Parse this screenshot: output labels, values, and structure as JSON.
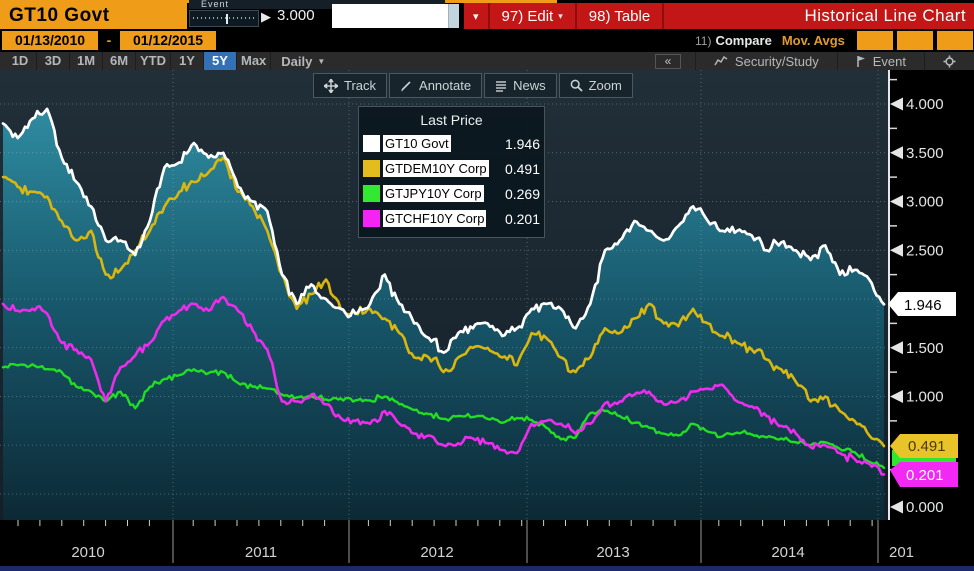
{
  "window": {
    "top_strip_fragment": "Event",
    "security": "GT10 Govt",
    "slider_pointer": "▶",
    "slider_value": "3.000",
    "input_value": "",
    "menu": {
      "dropdown_dot": "▾",
      "edit": "97) Edit",
      "edit_arrow": "▾",
      "table": "98) Table",
      "title": "Historical Line Chart"
    },
    "dates": {
      "from": "01/13/2010",
      "separator": "-",
      "to": "01/12/2015"
    },
    "compare_row": {
      "num": "11)",
      "compare": "Compare",
      "mov_avgs": "Mov. Avgs"
    }
  },
  "toolbar": {
    "ranges": [
      "1D",
      "3D",
      "1M",
      "6M",
      "YTD",
      "1Y",
      "5Y",
      "Max"
    ],
    "selected": "5Y",
    "period": "Daily",
    "period_arrow": "▼",
    "collapse": "«",
    "security_study": "Security/Study",
    "event": "Event"
  },
  "chart_toolbar": {
    "track": "Track",
    "annotate": "Annotate",
    "news": "News",
    "zoom": "Zoom"
  },
  "legend": {
    "title": "Last Price",
    "items": [
      {
        "label": "GT10 Govt",
        "value": "1.946",
        "color": "#ffffff"
      },
      {
        "label": "GTDEM10Y Corp",
        "value": "0.491",
        "color": "#e3bc1e"
      },
      {
        "label": "GTJPY10Y Corp",
        "value": "0.269",
        "color": "#33e833"
      },
      {
        "label": "GTCHF10Y Corp",
        "value": "0.201",
        "color": "#f424f4"
      }
    ]
  },
  "chart_data": {
    "type": "line",
    "title": "Historical Line Chart",
    "x_start": "2010-01",
    "x_end": "2015-01",
    "interval": "monthly",
    "x_axis": {
      "tick_labels": [
        "2010",
        "2011",
        "2012",
        "2013",
        "2014",
        "201"
      ]
    },
    "y_axis": {
      "min": 0,
      "max": 4,
      "tick_step": 0.5,
      "labels": [
        {
          "value": 4.0,
          "text": "4.000"
        },
        {
          "value": 3.5,
          "text": "3.500"
        },
        {
          "value": 3.0,
          "text": "3.000"
        },
        {
          "value": 2.5,
          "text": "2.500"
        },
        {
          "value": 1.5,
          "text": "1.500"
        },
        {
          "value": 1.0,
          "text": "1.000"
        },
        {
          "value": 0.0,
          "text": "0.000"
        }
      ]
    },
    "series": [
      {
        "name": "GT10 Govt",
        "color": "#ffffff",
        "last": 1.946,
        "values": [
          3.8,
          3.65,
          3.85,
          3.95,
          3.45,
          3.2,
          2.95,
          2.6,
          2.6,
          2.45,
          2.8,
          3.35,
          3.4,
          3.6,
          3.45,
          3.5,
          3.15,
          3.0,
          2.9,
          2.25,
          1.95,
          2.15,
          2.0,
          1.9,
          1.85,
          1.95,
          2.25,
          1.95,
          1.75,
          1.6,
          1.45,
          1.65,
          1.7,
          1.75,
          1.62,
          1.7,
          1.9,
          1.95,
          1.9,
          1.7,
          1.95,
          2.5,
          2.6,
          2.8,
          2.7,
          2.6,
          2.75,
          2.95,
          2.8,
          2.7,
          2.7,
          2.65,
          2.5,
          2.58,
          2.5,
          2.4,
          2.55,
          2.25,
          2.3,
          2.2,
          1.946
        ]
      },
      {
        "name": "GTDEM10Y Corp",
        "color": "#d9b70f",
        "last": 0.491,
        "values": [
          3.25,
          3.15,
          3.1,
          3.05,
          2.8,
          2.6,
          2.7,
          2.25,
          2.3,
          2.5,
          2.7,
          2.95,
          3.1,
          3.2,
          3.3,
          3.45,
          3.1,
          2.95,
          2.7,
          2.25,
          1.9,
          2.05,
          2.2,
          1.9,
          1.85,
          1.9,
          1.8,
          1.65,
          1.4,
          1.4,
          1.25,
          1.4,
          1.5,
          1.5,
          1.4,
          1.32,
          1.65,
          1.6,
          1.4,
          1.25,
          1.4,
          1.7,
          1.65,
          1.8,
          1.95,
          1.75,
          1.72,
          1.9,
          1.75,
          1.62,
          1.55,
          1.48,
          1.38,
          1.28,
          1.15,
          0.95,
          1.0,
          0.85,
          0.75,
          0.6,
          0.491
        ]
      },
      {
        "name": "GTJPY10Y Corp",
        "color": "#22dd22",
        "last": 0.269,
        "values": [
          1.3,
          1.32,
          1.33,
          1.28,
          1.25,
          1.1,
          1.05,
          0.95,
          1.05,
          0.88,
          1.1,
          1.18,
          1.22,
          1.28,
          1.24,
          1.25,
          1.14,
          1.1,
          1.08,
          1.02,
          0.99,
          1.0,
          0.97,
          0.98,
          0.96,
          0.96,
          1.0,
          0.92,
          0.86,
          0.82,
          0.77,
          0.8,
          0.79,
          0.77,
          0.73,
          0.78,
          0.76,
          0.68,
          0.56,
          0.58,
          0.83,
          0.85,
          0.8,
          0.73,
          0.68,
          0.62,
          0.6,
          0.72,
          0.64,
          0.59,
          0.63,
          0.61,
          0.58,
          0.57,
          0.53,
          0.5,
          0.53,
          0.46,
          0.43,
          0.33,
          0.269
        ]
      },
      {
        "name": "GTCHF10Y Corp",
        "color": "#ee2cee",
        "last": 0.201,
        "values": [
          1.95,
          1.88,
          1.9,
          1.85,
          1.55,
          1.48,
          1.38,
          0.95,
          1.3,
          1.42,
          1.55,
          1.78,
          1.88,
          1.95,
          1.88,
          2.02,
          1.88,
          1.68,
          1.48,
          0.95,
          0.95,
          1.02,
          0.92,
          0.78,
          0.75,
          0.72,
          0.85,
          0.72,
          0.62,
          0.6,
          0.5,
          0.52,
          0.57,
          0.52,
          0.45,
          0.42,
          0.72,
          0.75,
          0.72,
          0.62,
          0.72,
          0.93,
          0.95,
          1.02,
          1.05,
          0.92,
          0.95,
          1.05,
          1.08,
          1.12,
          0.95,
          0.9,
          0.8,
          0.7,
          0.62,
          0.48,
          0.5,
          0.42,
          0.36,
          0.31,
          0.201
        ]
      }
    ],
    "last_tags": [
      {
        "text": "1.946",
        "bg": "#ffffff",
        "fg": "#000000"
      },
      {
        "text": "0.491",
        "bg": "#e8c428",
        "fg": "#4a3a00"
      },
      {
        "text": "0.269",
        "bg": "#2ee62e",
        "fg": "#063b06"
      },
      {
        "text": "0.201",
        "bg": "#f428f4",
        "fg": "#ffffff"
      }
    ]
  }
}
